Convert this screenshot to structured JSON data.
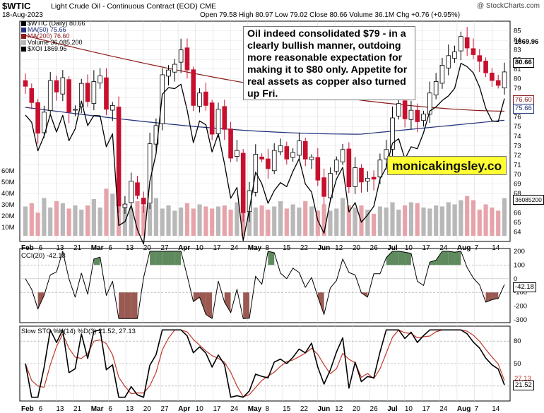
{
  "header": {
    "symbol": "$WTIC",
    "title": "Light Crude Oil - Continuous Contract (EOD)",
    "exchange": "CME",
    "date": "18-Aug-2023",
    "ohlc": "Open 79.58   High 80.97   Low 79.02   Close 80.66   Volume 36.1M   Chg +0.76 (+0.95%)",
    "brand": "@ StockCharts.com"
  },
  "annotation": "Oil indeed consolidated $79 - in a clearly bullish manner, outdoing more reasonable expectation for making it to $80 only. Appetite for real assets as copper also turned up Fri.",
  "website": "monicakingsley.co",
  "legend": {
    "price": "$WTIC (Daily) 80.66",
    "ma50": "MA(50) 75.66",
    "ma200": "MA(200) 76.60",
    "volume": "Volume 36,085,200",
    "xoi": "$XOI 1869.96"
  },
  "tags": {
    "xoi": "1869.96",
    "price": "80.66",
    "ma200": "76.60",
    "ma50": "75.66",
    "volume": "36085200",
    "cci": "-42.18",
    "stok": "21.52",
    "stod": "27.13"
  },
  "cci_label": "CCI(20) -42.18",
  "sto_label": "Slow STO %K(14) %D(3) 21.52, 27.13",
  "colors": {
    "up": "#000000",
    "down": "#c8102e",
    "ma200": "#8b1a1a",
    "ma50": "#1f2f7a",
    "volume_up": "#b8b8b8",
    "volume_down": "#e7a3aa",
    "cci_pos": "#5e8a5e",
    "cci_neg": "#9a5a52",
    "sto_d": "#c0392b"
  },
  "chart_data": [
    {
      "type": "candlestick",
      "title": "$WTIC (Daily) 80.66",
      "x_axis_labels": [
        "Feb",
        "6",
        "13",
        "21",
        "Mar",
        "6",
        "13",
        "20",
        "27",
        "Apr",
        "10",
        "17",
        "24",
        "May",
        "8",
        "15",
        "22",
        "Jun",
        "12",
        "20",
        "26",
        "Jul",
        "10",
        "17",
        "24",
        "Aug",
        "7",
        "14"
      ],
      "y_axis_labels": [
        64,
        65,
        66,
        67,
        68,
        69,
        70,
        71,
        72,
        73,
        74,
        75,
        76,
        77,
        78,
        79,
        80,
        81,
        82,
        83,
        84,
        85
      ],
      "ylim": [
        63,
        86
      ],
      "volume_axis_labels": [
        "10M",
        "20M",
        "30M",
        "40M",
        "50M",
        "60M"
      ],
      "close_series": [
        79.2,
        77.5,
        74.3,
        76.5,
        79.8,
        78.6,
        80.1,
        76.5,
        76.8,
        79.5,
        77.6,
        79.7,
        80.3,
        76.8,
        77.2,
        66.7,
        66.9,
        69.3,
        67.8,
        66.9,
        73.2,
        75.1,
        80.4,
        80.9,
        81.5,
        83.0,
        80.9,
        77.2,
        78.5,
        77.2,
        74.2,
        76.8,
        74.7,
        71.7,
        72.5,
        66.0,
        68.3,
        72.1,
        71.6,
        70.6,
        72.5,
        73.0,
        71.6,
        72.3,
        73.5,
        71.6,
        71.8,
        69.4,
        67.7,
        70.1,
        71.5,
        72.6,
        68.7,
        70.7,
        69.2,
        69.6,
        69.5,
        71.5,
        72.6,
        75.9,
        77.4,
        75.8,
        76.7,
        75.5,
        76.3,
        78.5,
        79.7,
        81.4,
        82.4,
        82.8,
        84.4,
        83.2,
        82.5,
        81.8,
        80.6,
        79.8,
        79.3,
        80.7
      ],
      "volume_series": [
        28,
        31,
        22,
        36,
        27,
        33,
        31,
        26,
        29,
        25,
        29,
        35,
        27,
        45,
        40,
        32,
        30,
        27,
        33,
        29,
        30,
        36,
        26,
        29,
        24,
        27,
        31,
        26,
        30,
        28,
        26,
        28,
        29,
        25,
        32,
        36,
        28,
        27,
        29,
        25,
        28,
        33,
        26,
        30,
        27,
        33,
        28,
        24,
        30,
        24,
        26,
        36,
        29,
        27,
        29,
        25,
        21,
        28,
        27,
        32,
        25,
        29,
        32,
        31,
        27,
        26,
        29,
        28,
        32,
        30,
        34,
        38,
        34,
        25,
        30,
        27,
        24,
        36
      ],
      "ma50": {
        "start": 77.0,
        "low": 74.2,
        "end": 75.66
      },
      "ma200": {
        "start": 84.5,
        "end": 76.6
      },
      "xoi_overlay": {
        "last": 1869.96
      }
    },
    {
      "type": "line",
      "title": "CCI(20) -42.18",
      "y_axis_labels": [
        200,
        100,
        0,
        -100,
        -200,
        -300
      ],
      "ylim": [
        -320,
        220
      ],
      "last": -42.18
    },
    {
      "type": "line",
      "title": "Slow STO %K(14) %D(3) 21.52, 27.13",
      "y_axis_labels": [
        80,
        50,
        20
      ],
      "ylim": [
        0,
        100
      ],
      "last_k": 21.52,
      "last_d": 27.13
    }
  ]
}
